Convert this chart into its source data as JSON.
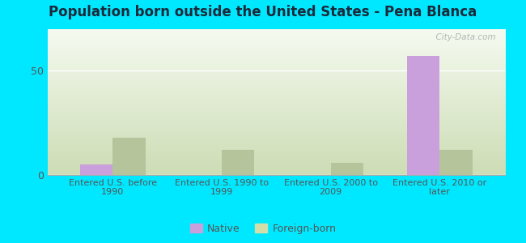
{
  "title": "Population born outside the United States - Pena Blanca",
  "categories": [
    "Entered U.S. before\n1990",
    "Entered U.S. 1990 to\n1999",
    "Entered U.S. 2000 to\n2009",
    "Entered U.S. 2010 or\nlater"
  ],
  "native_values": [
    5,
    0,
    0,
    57
  ],
  "foreign_born_values": [
    18,
    12,
    6,
    12
  ],
  "native_color": "#c9a0dc",
  "foreign_born_color": "#b5c49a",
  "background_outer": "#00e8ff",
  "grad_top": "#f5faf0",
  "grad_bottom": "#cdddb5",
  "ylim": [
    0,
    70
  ],
  "yticks": [
    0,
    50
  ],
  "bar_width": 0.3,
  "title_fontsize": 12,
  "title_color": "#1a2a3a",
  "tick_label_color": "#555555",
  "watermark": "  City-Data.com",
  "legend_labels": [
    "Native",
    "Foreign-born"
  ],
  "legend_native_color": "#c9a0dc",
  "legend_fb_color": "#d4dea8"
}
